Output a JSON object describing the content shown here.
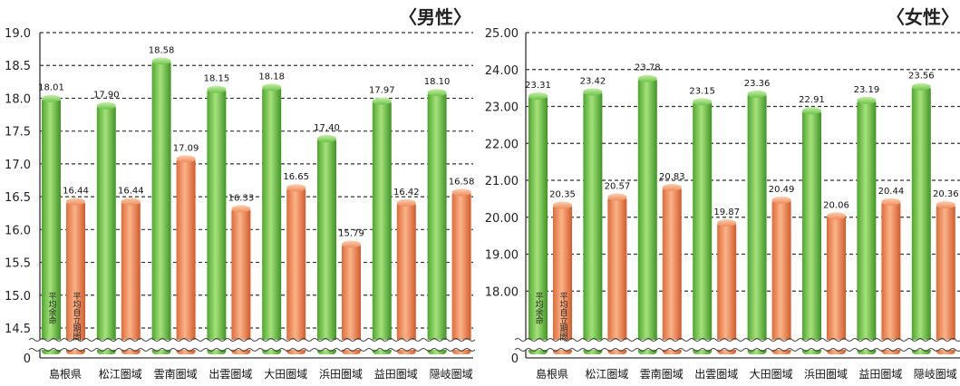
{
  "chart_data": [
    {
      "type": "bar",
      "title": "〈男性〉",
      "categories": [
        "島根県",
        "松江圏域",
        "雲南圏域",
        "出雲圏域",
        "大田圏域",
        "浜田圏域",
        "益田圏域",
        "隠岐圏域"
      ],
      "series": [
        {
          "name": "平均余命",
          "color": "#6cc34a",
          "values": [
            18.01,
            17.9,
            18.58,
            18.15,
            18.18,
            17.4,
            17.97,
            18.1
          ]
        },
        {
          "name": "平均自立期間",
          "color": "#f08a5a",
          "values": [
            16.44,
            16.44,
            17.09,
            16.33,
            16.65,
            15.79,
            16.42,
            16.58
          ]
        }
      ],
      "y_ticks": [
        "0",
        "14.5",
        "15.0",
        "15.5",
        "16.0",
        "16.5",
        "17.0",
        "17.5",
        "18.0",
        "18.5",
        "19.0"
      ],
      "ylim": [
        14.5,
        19.0
      ],
      "axis_break": true,
      "grid": true
    },
    {
      "type": "bar",
      "title": "〈女性〉",
      "categories": [
        "島根県",
        "松江圏域",
        "雲南圏域",
        "出雲圏域",
        "大田圏域",
        "浜田圏域",
        "益田圏域",
        "隠岐圏域"
      ],
      "series": [
        {
          "name": "平均余命",
          "color": "#6cc34a",
          "values": [
            23.31,
            23.42,
            23.78,
            23.15,
            23.36,
            22.91,
            23.19,
            23.56
          ]
        },
        {
          "name": "平均自立期間",
          "color": "#f08a5a",
          "values": [
            20.35,
            20.57,
            20.83,
            19.87,
            20.49,
            20.06,
            20.44,
            20.36
          ]
        }
      ],
      "y_ticks": [
        "0",
        "18.00",
        "19.00",
        "20.00",
        "21.00",
        "22.00",
        "23.00",
        "24.00",
        "25.00"
      ],
      "ylim": [
        17.0,
        25.0
      ],
      "axis_break": true,
      "grid": true
    }
  ]
}
